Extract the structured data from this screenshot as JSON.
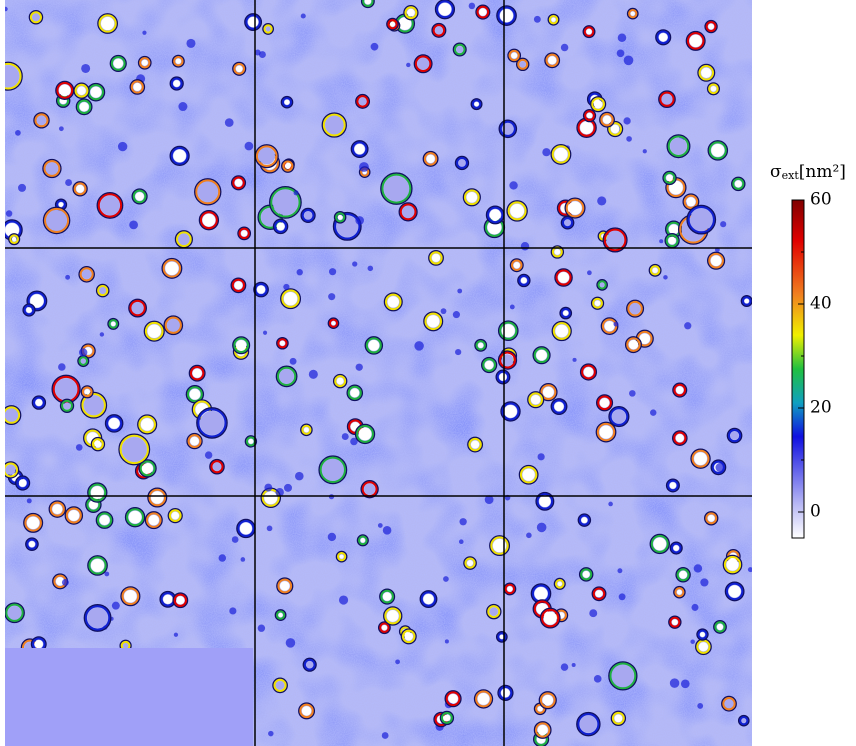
{
  "colorbar": {
    "symbol": "σ",
    "subscript": "ext",
    "unit": "[nm²]",
    "lim": [
      -5,
      60
    ],
    "ticks": [
      0,
      20,
      40,
      60
    ],
    "minor_ticks": [
      10,
      30,
      50
    ]
  }
}
